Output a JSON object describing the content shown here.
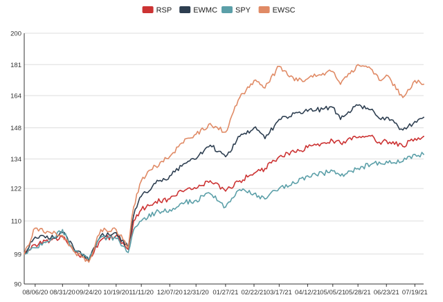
{
  "chart_data": {
    "type": "line",
    "title": "",
    "xlabel": "",
    "ylabel": "",
    "ylim": [
      90,
      200
    ],
    "y_ticks": [
      90,
      99,
      110,
      122,
      134,
      148,
      164,
      181,
      200
    ],
    "x_range": [
      "2020-07-27",
      "2021-07-27"
    ],
    "x_tick_labels": [
      "08/06/20",
      "08/31/20",
      "09/24/20",
      "10/19/20",
      "11/11/20",
      "12/07/20",
      "12/31/20",
      "01/27/21",
      "02/22/21",
      "03/17/21",
      "04/12/21",
      "05/05/21",
      "05/28/21",
      "06/23/21",
      "07/19/21"
    ],
    "x_tick_dates": [
      "2020-08-06",
      "2020-08-31",
      "2020-09-24",
      "2020-10-19",
      "2020-11-11",
      "2020-12-07",
      "2020-12-31",
      "2021-01-27",
      "2021-02-22",
      "2021-03-17",
      "2021-04-12",
      "2021-05-05",
      "2021-05-28",
      "2021-06-23",
      "2021-07-19"
    ],
    "y_scale": "log",
    "grid": "horizontal",
    "legend_position": "top-center",
    "series": [
      {
        "name": "RSP",
        "color": "#cc3333",
        "x": [
          "2020-07-27",
          "2020-08-06",
          "2020-08-20",
          "2020-08-31",
          "2020-09-10",
          "2020-09-24",
          "2020-10-05",
          "2020-10-19",
          "2020-10-30",
          "2020-11-04",
          "2020-11-11",
          "2020-11-24",
          "2020-12-07",
          "2020-12-18",
          "2020-12-31",
          "2021-01-13",
          "2021-01-27",
          "2021-02-09",
          "2021-02-22",
          "2021-03-04",
          "2021-03-17",
          "2021-03-31",
          "2021-04-12",
          "2021-04-26",
          "2021-05-05",
          "2021-05-12",
          "2021-05-28",
          "2021-06-10",
          "2021-06-18",
          "2021-06-23",
          "2021-07-08",
          "2021-07-19",
          "2021-07-27"
        ],
        "values": [
          99,
          102,
          103.5,
          104.5,
          100,
          97,
          103.5,
          105,
          100.5,
          110,
          114,
          117,
          118,
          121,
          122,
          125,
          121,
          125,
          128,
          130,
          135,
          137,
          139,
          141,
          142,
          141,
          143.5,
          144.5,
          140.5,
          142,
          139.5,
          143,
          144
        ]
      },
      {
        "name": "EWMC",
        "color": "#2d3e50",
        "x": [
          "2020-07-27",
          "2020-08-06",
          "2020-08-20",
          "2020-08-31",
          "2020-09-10",
          "2020-09-24",
          "2020-10-05",
          "2020-10-19",
          "2020-10-30",
          "2020-11-04",
          "2020-11-11",
          "2020-11-24",
          "2020-12-07",
          "2020-12-18",
          "2020-12-31",
          "2021-01-13",
          "2021-01-27",
          "2021-02-09",
          "2021-02-22",
          "2021-03-04",
          "2021-03-17",
          "2021-03-31",
          "2021-04-12",
          "2021-04-26",
          "2021-05-05",
          "2021-05-12",
          "2021-05-28",
          "2021-06-10",
          "2021-06-18",
          "2021-06-23",
          "2021-07-08",
          "2021-07-19",
          "2021-07-27"
        ],
        "values": [
          99,
          104.5,
          104,
          106,
          101,
          97,
          105,
          106,
          101,
          112,
          119,
          124,
          127,
          131,
          134,
          140,
          135,
          144,
          148,
          143,
          152,
          155,
          156,
          157,
          158,
          152,
          159,
          157,
          152,
          153,
          147,
          151,
          153
        ]
      },
      {
        "name": "SPY",
        "color": "#5b9fa8",
        "x": [
          "2020-07-27",
          "2020-08-06",
          "2020-08-20",
          "2020-08-31",
          "2020-09-10",
          "2020-09-24",
          "2020-10-05",
          "2020-10-19",
          "2020-10-30",
          "2020-11-04",
          "2020-11-11",
          "2020-11-24",
          "2020-12-07",
          "2020-12-18",
          "2020-12-31",
          "2021-01-13",
          "2021-01-27",
          "2021-02-09",
          "2021-02-22",
          "2021-03-04",
          "2021-03-17",
          "2021-03-31",
          "2021-04-12",
          "2021-04-26",
          "2021-05-05",
          "2021-05-12",
          "2021-05-28",
          "2021-06-10",
          "2021-06-18",
          "2021-06-23",
          "2021-07-08",
          "2021-07-19",
          "2021-07-27"
        ],
        "values": [
          99,
          101,
          103.5,
          107,
          100,
          97.5,
          104.5,
          104,
          99.5,
          107,
          110,
          113,
          114,
          116.5,
          117.5,
          120,
          115,
          121.5,
          120,
          118,
          122,
          124,
          127,
          128,
          129,
          127,
          130,
          132,
          132,
          133,
          133,
          136,
          136
        ]
      },
      {
        "name": "EWSC",
        "color": "#e08a65",
        "x": [
          "2020-07-27",
          "2020-08-06",
          "2020-08-20",
          "2020-08-31",
          "2020-09-10",
          "2020-09-24",
          "2020-10-05",
          "2020-10-19",
          "2020-10-30",
          "2020-11-04",
          "2020-11-11",
          "2020-11-24",
          "2020-12-07",
          "2020-12-18",
          "2020-12-31",
          "2021-01-13",
          "2021-01-27",
          "2021-02-09",
          "2021-02-22",
          "2021-03-04",
          "2021-03-17",
          "2021-03-31",
          "2021-04-12",
          "2021-04-26",
          "2021-05-05",
          "2021-05-12",
          "2021-05-28",
          "2021-06-10",
          "2021-06-18",
          "2021-06-23",
          "2021-07-08",
          "2021-07-19",
          "2021-07-27"
        ],
        "values": [
          99,
          107.5,
          106,
          105,
          100,
          96.5,
          107,
          107,
          101,
          115,
          125,
          131,
          135,
          141,
          145,
          150,
          146,
          163,
          172,
          168,
          180,
          172,
          173,
          176,
          177,
          170,
          181,
          178,
          172,
          175,
          163,
          172,
          170
        ]
      }
    ]
  }
}
